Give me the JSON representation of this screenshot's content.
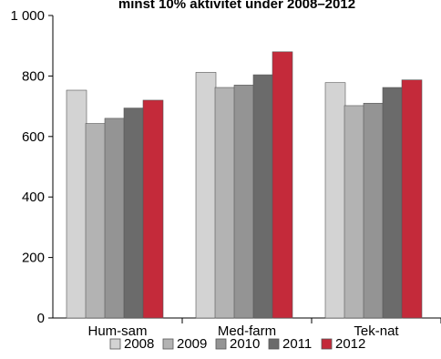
{
  "chart_data": {
    "type": "bar",
    "title": "minst 10% aktivitet under 2008–2012",
    "categories": [
      "Hum-sam",
      "Med-farm",
      "Tek-nat"
    ],
    "series": [
      {
        "name": "2008",
        "color": "#d3d3d3",
        "values": [
          753,
          812,
          778
        ]
      },
      {
        "name": "2009",
        "color": "#b3b3b3",
        "values": [
          643,
          762,
          702
        ]
      },
      {
        "name": "2010",
        "color": "#949494",
        "values": [
          660,
          770,
          710
        ]
      },
      {
        "name": "2011",
        "color": "#6b6b6b",
        "values": [
          694,
          804,
          762
        ]
      },
      {
        "name": "2012",
        "color": "#c42a3a",
        "values": [
          720,
          880,
          787
        ]
      }
    ],
    "ylim": [
      0,
      1000
    ],
    "yticks": [
      0,
      200,
      400,
      600,
      800,
      1000
    ],
    "ytick_labels": [
      "0",
      "200",
      "400",
      "600",
      "800",
      "1 000"
    ],
    "xlabel": "",
    "ylabel": "",
    "grid": false,
    "legend_position": "bottom"
  }
}
